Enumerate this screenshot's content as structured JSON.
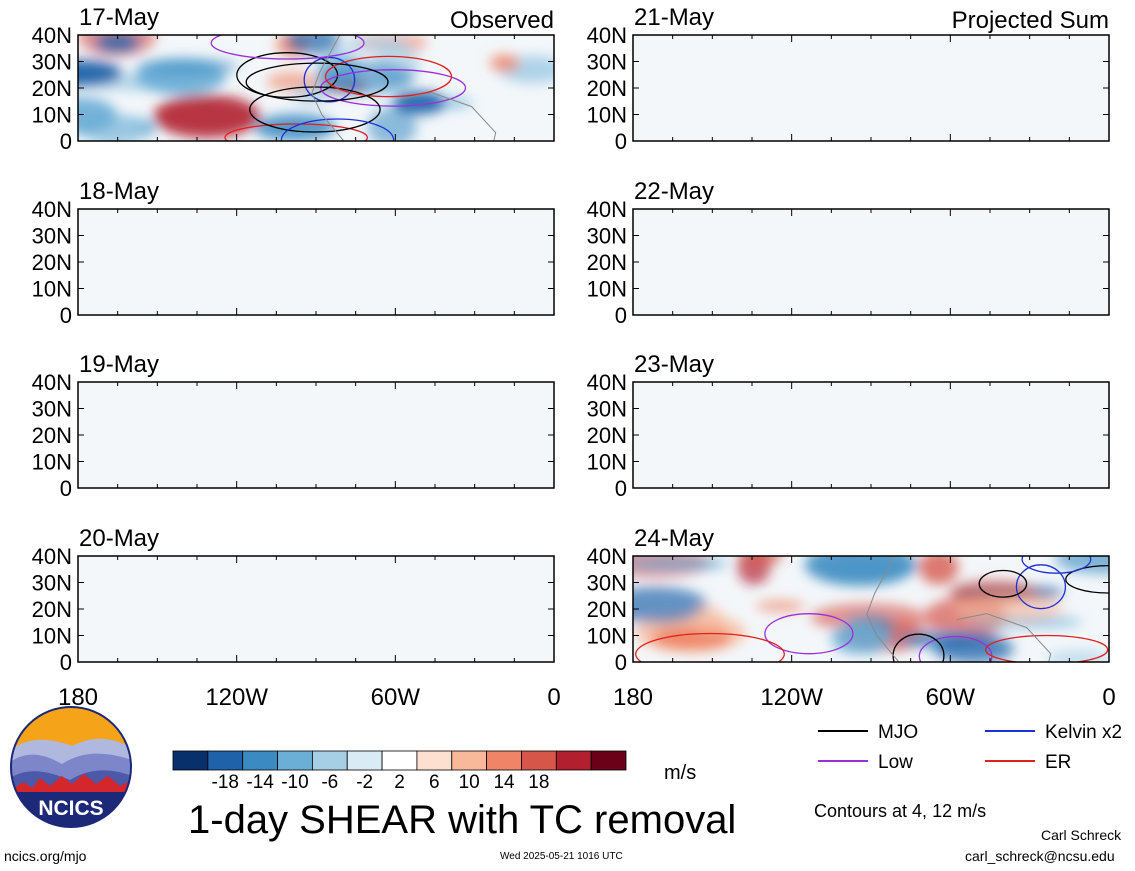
{
  "chart_data": {
    "type": "heatmap",
    "title": "1-day SHEAR with TC removal",
    "units": "m/s",
    "x_ticks": [
      "180",
      "120W",
      "60W",
      "0"
    ],
    "y_ticks": [
      "40N",
      "30N",
      "20N",
      "10N",
      "0"
    ],
    "columns": [
      {
        "label": "Observed",
        "panels": [
          "17-May",
          "18-May",
          "19-May",
          "20-May"
        ]
      },
      {
        "label": "Projected Sum",
        "panels": [
          "21-May",
          "22-May",
          "23-May",
          "24-May"
        ]
      }
    ],
    "colorbar": {
      "ticks": [
        "-18",
        "-14",
        "-10",
        "-6",
        "-2",
        "2",
        "6",
        "10",
        "14",
        "18"
      ],
      "colors": [
        "#08306b",
        "#1f62a9",
        "#3b8bc2",
        "#6baed6",
        "#a6cfe6",
        "#d9ecf6",
        "#ffffff",
        "#fde0d0",
        "#f8b89a",
        "#ef8566",
        "#d6564a",
        "#b21f2e",
        "#6b0019"
      ]
    },
    "legend": [
      {
        "label": "MJO",
        "color": "#000000"
      },
      {
        "label": "Kelvin x2",
        "color": "#1f2fd6"
      },
      {
        "label": "Low",
        "color": "#9b30d9"
      },
      {
        "label": "ER",
        "color": "#e01f1f"
      }
    ],
    "contour_note": "Contours at 4, 12 m/s"
  },
  "branding": {
    "logo_text": "NCICS",
    "url": "ncics.org/mjo",
    "timestamp": "Wed 2025-05-21 1016 UTC",
    "author": "Carl Schreck",
    "email": "carl_schreck@ncsu.edu"
  }
}
